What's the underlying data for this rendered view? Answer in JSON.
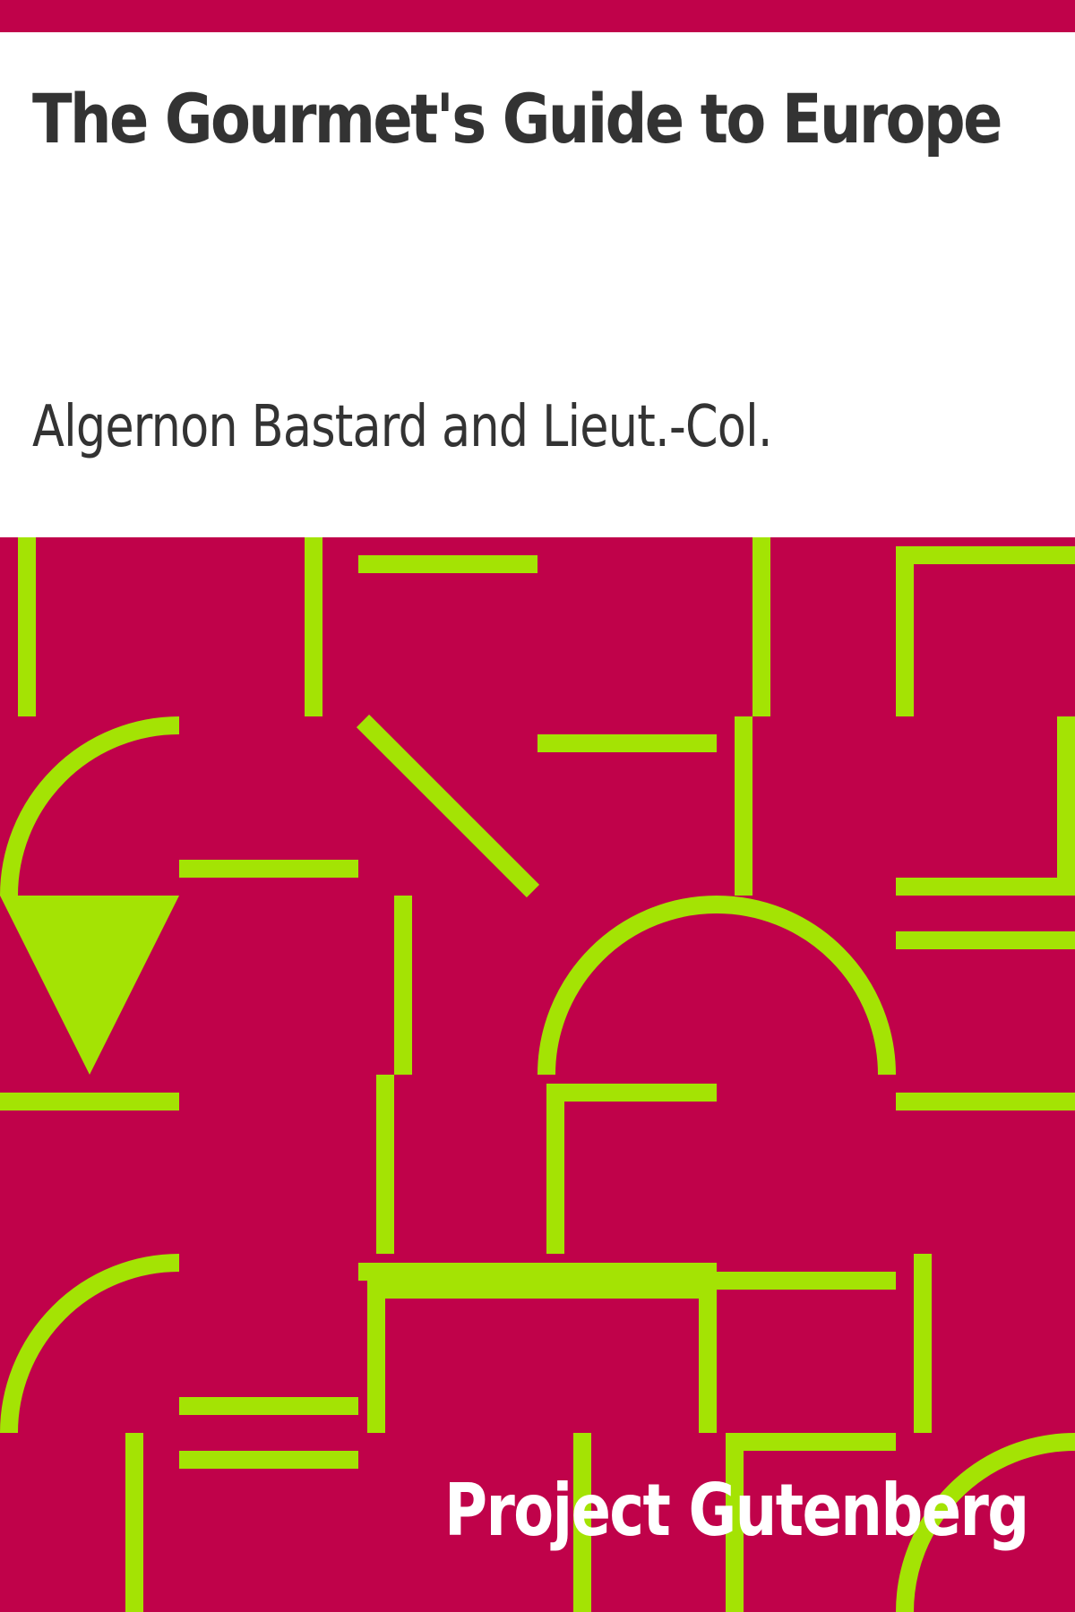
{
  "cover": {
    "title": "The Gourmet's Guide to Europe",
    "author": "Algernon Bastard and Lieut.-Col.",
    "publisher": "Project Gutenberg"
  },
  "colors": {
    "background": "#c0024a",
    "pattern": "#a4e304",
    "title_text": "#333333",
    "publisher_text": "#ffffff"
  }
}
